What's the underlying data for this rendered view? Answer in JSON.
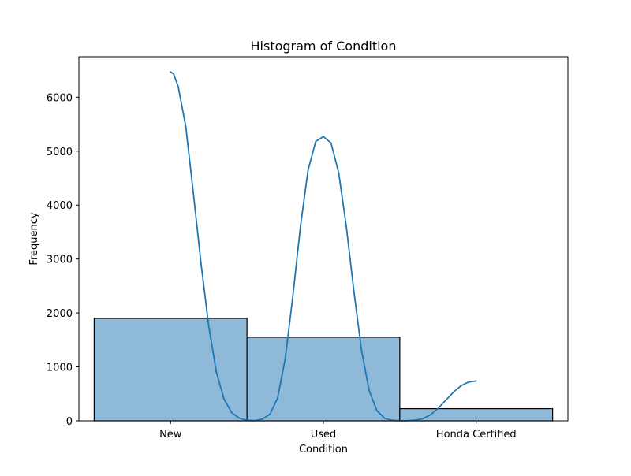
{
  "chart_data": {
    "type": "bar",
    "title": "Histogram of Condition",
    "xlabel": "Condition",
    "ylabel": "Frequency",
    "categories": [
      "New",
      "Used",
      "Honda Certified"
    ],
    "values": [
      1900,
      1550,
      225
    ],
    "ylim": [
      0,
      6750
    ],
    "yticks": [
      0,
      1000,
      2000,
      3000,
      4000,
      5000,
      6000
    ],
    "grid": false,
    "bar_color": "#8fb9d9",
    "bar_edge_color": "#000000",
    "kde_color": "#1f77b4",
    "kde_curve": [
      {
        "x": 0.0,
        "y": 6470
      },
      {
        "x": 0.02,
        "y": 6430
      },
      {
        "x": 0.05,
        "y": 6200
      },
      {
        "x": 0.1,
        "y": 5450
      },
      {
        "x": 0.15,
        "y": 4200
      },
      {
        "x": 0.2,
        "y": 2900
      },
      {
        "x": 0.25,
        "y": 1750
      },
      {
        "x": 0.3,
        "y": 900
      },
      {
        "x": 0.35,
        "y": 400
      },
      {
        "x": 0.4,
        "y": 150
      },
      {
        "x": 0.45,
        "y": 50
      },
      {
        "x": 0.5,
        "y": 10
      },
      {
        "x": 0.55,
        "y": 5
      },
      {
        "x": 0.6,
        "y": 30
      },
      {
        "x": 0.65,
        "y": 120
      },
      {
        "x": 0.7,
        "y": 420
      },
      {
        "x": 0.75,
        "y": 1150
      },
      {
        "x": 0.8,
        "y": 2300
      },
      {
        "x": 0.85,
        "y": 3600
      },
      {
        "x": 0.9,
        "y": 4650
      },
      {
        "x": 0.95,
        "y": 5180
      },
      {
        "x": 1.0,
        "y": 5270
      },
      {
        "x": 1.05,
        "y": 5150
      },
      {
        "x": 1.1,
        "y": 4600
      },
      {
        "x": 1.15,
        "y": 3600
      },
      {
        "x": 1.2,
        "y": 2400
      },
      {
        "x": 1.25,
        "y": 1300
      },
      {
        "x": 1.3,
        "y": 560
      },
      {
        "x": 1.35,
        "y": 190
      },
      {
        "x": 1.4,
        "y": 50
      },
      {
        "x": 1.45,
        "y": 10
      },
      {
        "x": 1.5,
        "y": 2
      },
      {
        "x": 1.55,
        "y": 3
      },
      {
        "x": 1.6,
        "y": 12
      },
      {
        "x": 1.65,
        "y": 40
      },
      {
        "x": 1.7,
        "y": 110
      },
      {
        "x": 1.75,
        "y": 230
      },
      {
        "x": 1.8,
        "y": 380
      },
      {
        "x": 1.85,
        "y": 530
      },
      {
        "x": 1.9,
        "y": 650
      },
      {
        "x": 1.95,
        "y": 720
      },
      {
        "x": 2.0,
        "y": 740
      }
    ]
  }
}
